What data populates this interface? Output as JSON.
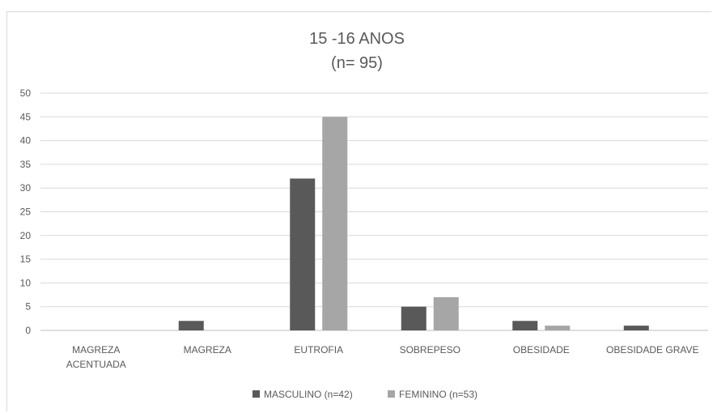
{
  "chart_data": {
    "type": "bar",
    "title_lines": [
      "15 -16 ANOS",
      "(n= 95)"
    ],
    "categories": [
      [
        "MAGREZA",
        "ACENTUADA"
      ],
      [
        "MAGREZA"
      ],
      [
        "EUTROFIA"
      ],
      [
        "SOBREPESO"
      ],
      [
        "OBESIDADE"
      ],
      [
        "OBESIDADE GRAVE"
      ]
    ],
    "series": [
      {
        "name": "MASCULINO (n=42)",
        "color": "#595959",
        "values": [
          0,
          2,
          32,
          5,
          2,
          1
        ]
      },
      {
        "name": "FEMININO (n=53)",
        "color": "#a6a6a6",
        "values": [
          0,
          0,
          45,
          7,
          1,
          0
        ]
      }
    ],
    "ylim": [
      0,
      50
    ],
    "yticks": [
      0,
      5,
      10,
      15,
      20,
      25,
      30,
      35,
      40,
      45,
      50
    ],
    "grid": true,
    "legend_position": "bottom"
  }
}
